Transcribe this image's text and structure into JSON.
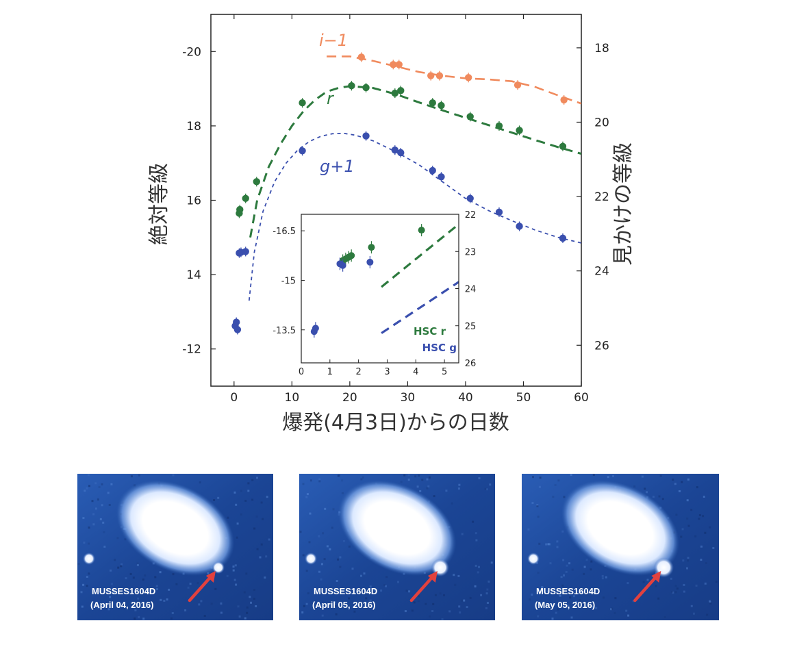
{
  "chart_data": [
    {
      "type": "scatter",
      "title": "",
      "xlabel": "爆発(4月3日)からの日数",
      "ylabel": "絶対等級",
      "y2label": "見かけの等級",
      "xlim": [
        -4,
        60
      ],
      "ylim": [
        -11,
        -21
      ],
      "y2lim": [
        27.1,
        17.1
      ],
      "x_ticks": [
        "0",
        "10",
        "20",
        "30",
        "40",
        "50",
        "60"
      ],
      "y_ticks": [
        "-20",
        "18",
        "16",
        "14",
        "-12"
      ],
      "y2_ticks": [
        "18",
        "20",
        "22",
        "24",
        "26"
      ],
      "series": [
        {
          "name": "i−1",
          "color": "#f08a5d",
          "points": [
            [
              22,
              -19.85
            ],
            [
              27.5,
              -19.65
            ],
            [
              28.5,
              -19.65
            ],
            [
              34,
              -19.35
            ],
            [
              35.5,
              -19.35
            ],
            [
              40.5,
              -19.3
            ],
            [
              49,
              -19.1
            ],
            [
              57,
              -18.7
            ]
          ],
          "model_x": [
            16,
            20,
            24,
            28,
            32,
            36,
            40,
            44,
            48,
            52,
            56,
            60
          ],
          "model_y": [
            -19.87,
            -19.87,
            -19.75,
            -19.6,
            -19.45,
            -19.35,
            -19.28,
            -19.25,
            -19.2,
            -19.05,
            -18.82,
            -18.6
          ]
        },
        {
          "name": "r",
          "color": "#2d7a3e",
          "points": [
            [
              0.9,
              -15.65
            ],
            [
              1.0,
              -15.75
            ],
            [
              2.0,
              -16.05
            ],
            [
              3.9,
              -16.5
            ],
            [
              11.8,
              -18.62
            ],
            [
              20.3,
              -19.08
            ],
            [
              22.8,
              -19.03
            ],
            [
              27.8,
              -18.88
            ],
            [
              28.8,
              -18.95
            ],
            [
              34.3,
              -18.62
            ],
            [
              35.8,
              -18.55
            ],
            [
              40.8,
              -18.25
            ],
            [
              45.8,
              -18.0
            ],
            [
              49.3,
              -17.88
            ],
            [
              56.8,
              -17.45
            ]
          ],
          "model_x": [
            2.8,
            4,
            6,
            8,
            10,
            12,
            14,
            16,
            18,
            20,
            24,
            28,
            32,
            36,
            40,
            44,
            48,
            52,
            56,
            60
          ],
          "model_y": [
            -15.0,
            -16.0,
            -16.9,
            -17.5,
            -18.0,
            -18.4,
            -18.7,
            -18.92,
            -19.02,
            -19.07,
            -19.02,
            -18.85,
            -18.63,
            -18.42,
            -18.22,
            -18.02,
            -17.82,
            -17.62,
            -17.43,
            -17.25
          ]
        },
        {
          "name": "g+1",
          "color": "#3a4fae",
          "points": [
            [
              0.2,
              -12.62
            ],
            [
              0.4,
              -12.72
            ],
            [
              0.6,
              -12.52
            ],
            [
              0.9,
              -14.58
            ],
            [
              1.2,
              -14.6
            ],
            [
              2.0,
              -14.62
            ],
            [
              11.8,
              -17.33
            ],
            [
              22.8,
              -17.73
            ],
            [
              27.8,
              -17.35
            ],
            [
              28.8,
              -17.28
            ],
            [
              34.3,
              -16.8
            ],
            [
              35.8,
              -16.63
            ],
            [
              40.8,
              -16.05
            ],
            [
              45.8,
              -15.68
            ],
            [
              49.3,
              -15.3
            ],
            [
              56.8,
              -14.98
            ]
          ],
          "model_x": [
            2.6,
            3.5,
            5,
            7,
            9,
            11,
            13,
            15,
            17,
            19,
            21,
            24,
            28,
            32,
            36,
            40,
            44,
            48,
            52,
            56,
            60
          ],
          "model_y": [
            -13.3,
            -14.6,
            -15.7,
            -16.5,
            -17.0,
            -17.35,
            -17.58,
            -17.72,
            -17.79,
            -17.8,
            -17.75,
            -17.6,
            -17.3,
            -16.95,
            -16.5,
            -16.05,
            -15.72,
            -15.45,
            -15.2,
            -15.0,
            -14.85
          ]
        }
      ],
      "series_labels": [
        "i−1",
        "r",
        "g+1"
      ]
    },
    {
      "type": "scatter",
      "inset": true,
      "xlim": [
        0,
        5.5
      ],
      "ylim": [
        -12.5,
        -17
      ],
      "y2lim": [
        26,
        22
      ],
      "x_ticks": [
        "0",
        "1",
        "2",
        "3",
        "4",
        "5"
      ],
      "y_ticks": [
        "-16.5",
        "-15",
        "-13.5"
      ],
      "y2_ticks": [
        "22",
        "23",
        "24",
        "25",
        "26"
      ],
      "series": [
        {
          "name": "HSC r",
          "color": "#2d7a3e",
          "points": [
            [
              1.45,
              -15.6
            ],
            [
              1.55,
              -15.65
            ],
            [
              1.65,
              -15.7
            ],
            [
              1.75,
              -15.75
            ],
            [
              2.45,
              -16.0
            ],
            [
              4.2,
              -16.52
            ]
          ],
          "model_x": [
            2.8,
            5.5
          ],
          "model_y": [
            -14.8,
            -16.7
          ]
        },
        {
          "name": "HSC g",
          "color": "#3a4fae",
          "points": [
            [
              0.45,
              -13.45
            ],
            [
              0.5,
              -13.55
            ],
            [
              1.35,
              -15.5
            ],
            [
              1.45,
              -15.45
            ],
            [
              2.4,
              -15.55
            ]
          ],
          "model_x": [
            2.8,
            5.5
          ],
          "model_y": [
            -13.4,
            -14.95
          ]
        }
      ],
      "legend": [
        "HSC r",
        "HSC g"
      ],
      "legend_position": "bottom-right"
    }
  ],
  "photos": [
    {
      "name": "MUSSES1604D",
      "date": "(April 04, 2016)"
    },
    {
      "name": "MUSSES1604D",
      "date": "(April 05, 2016)"
    },
    {
      "name": "MUSSES1604D",
      "date": "(May 05, 2016)"
    }
  ],
  "colors": {
    "i_band": "#f08a5d",
    "r_band": "#2d7a3e",
    "g_band": "#3a4fae",
    "arrow": "#e2413e",
    "photo_bg": "#1f4d9c"
  }
}
